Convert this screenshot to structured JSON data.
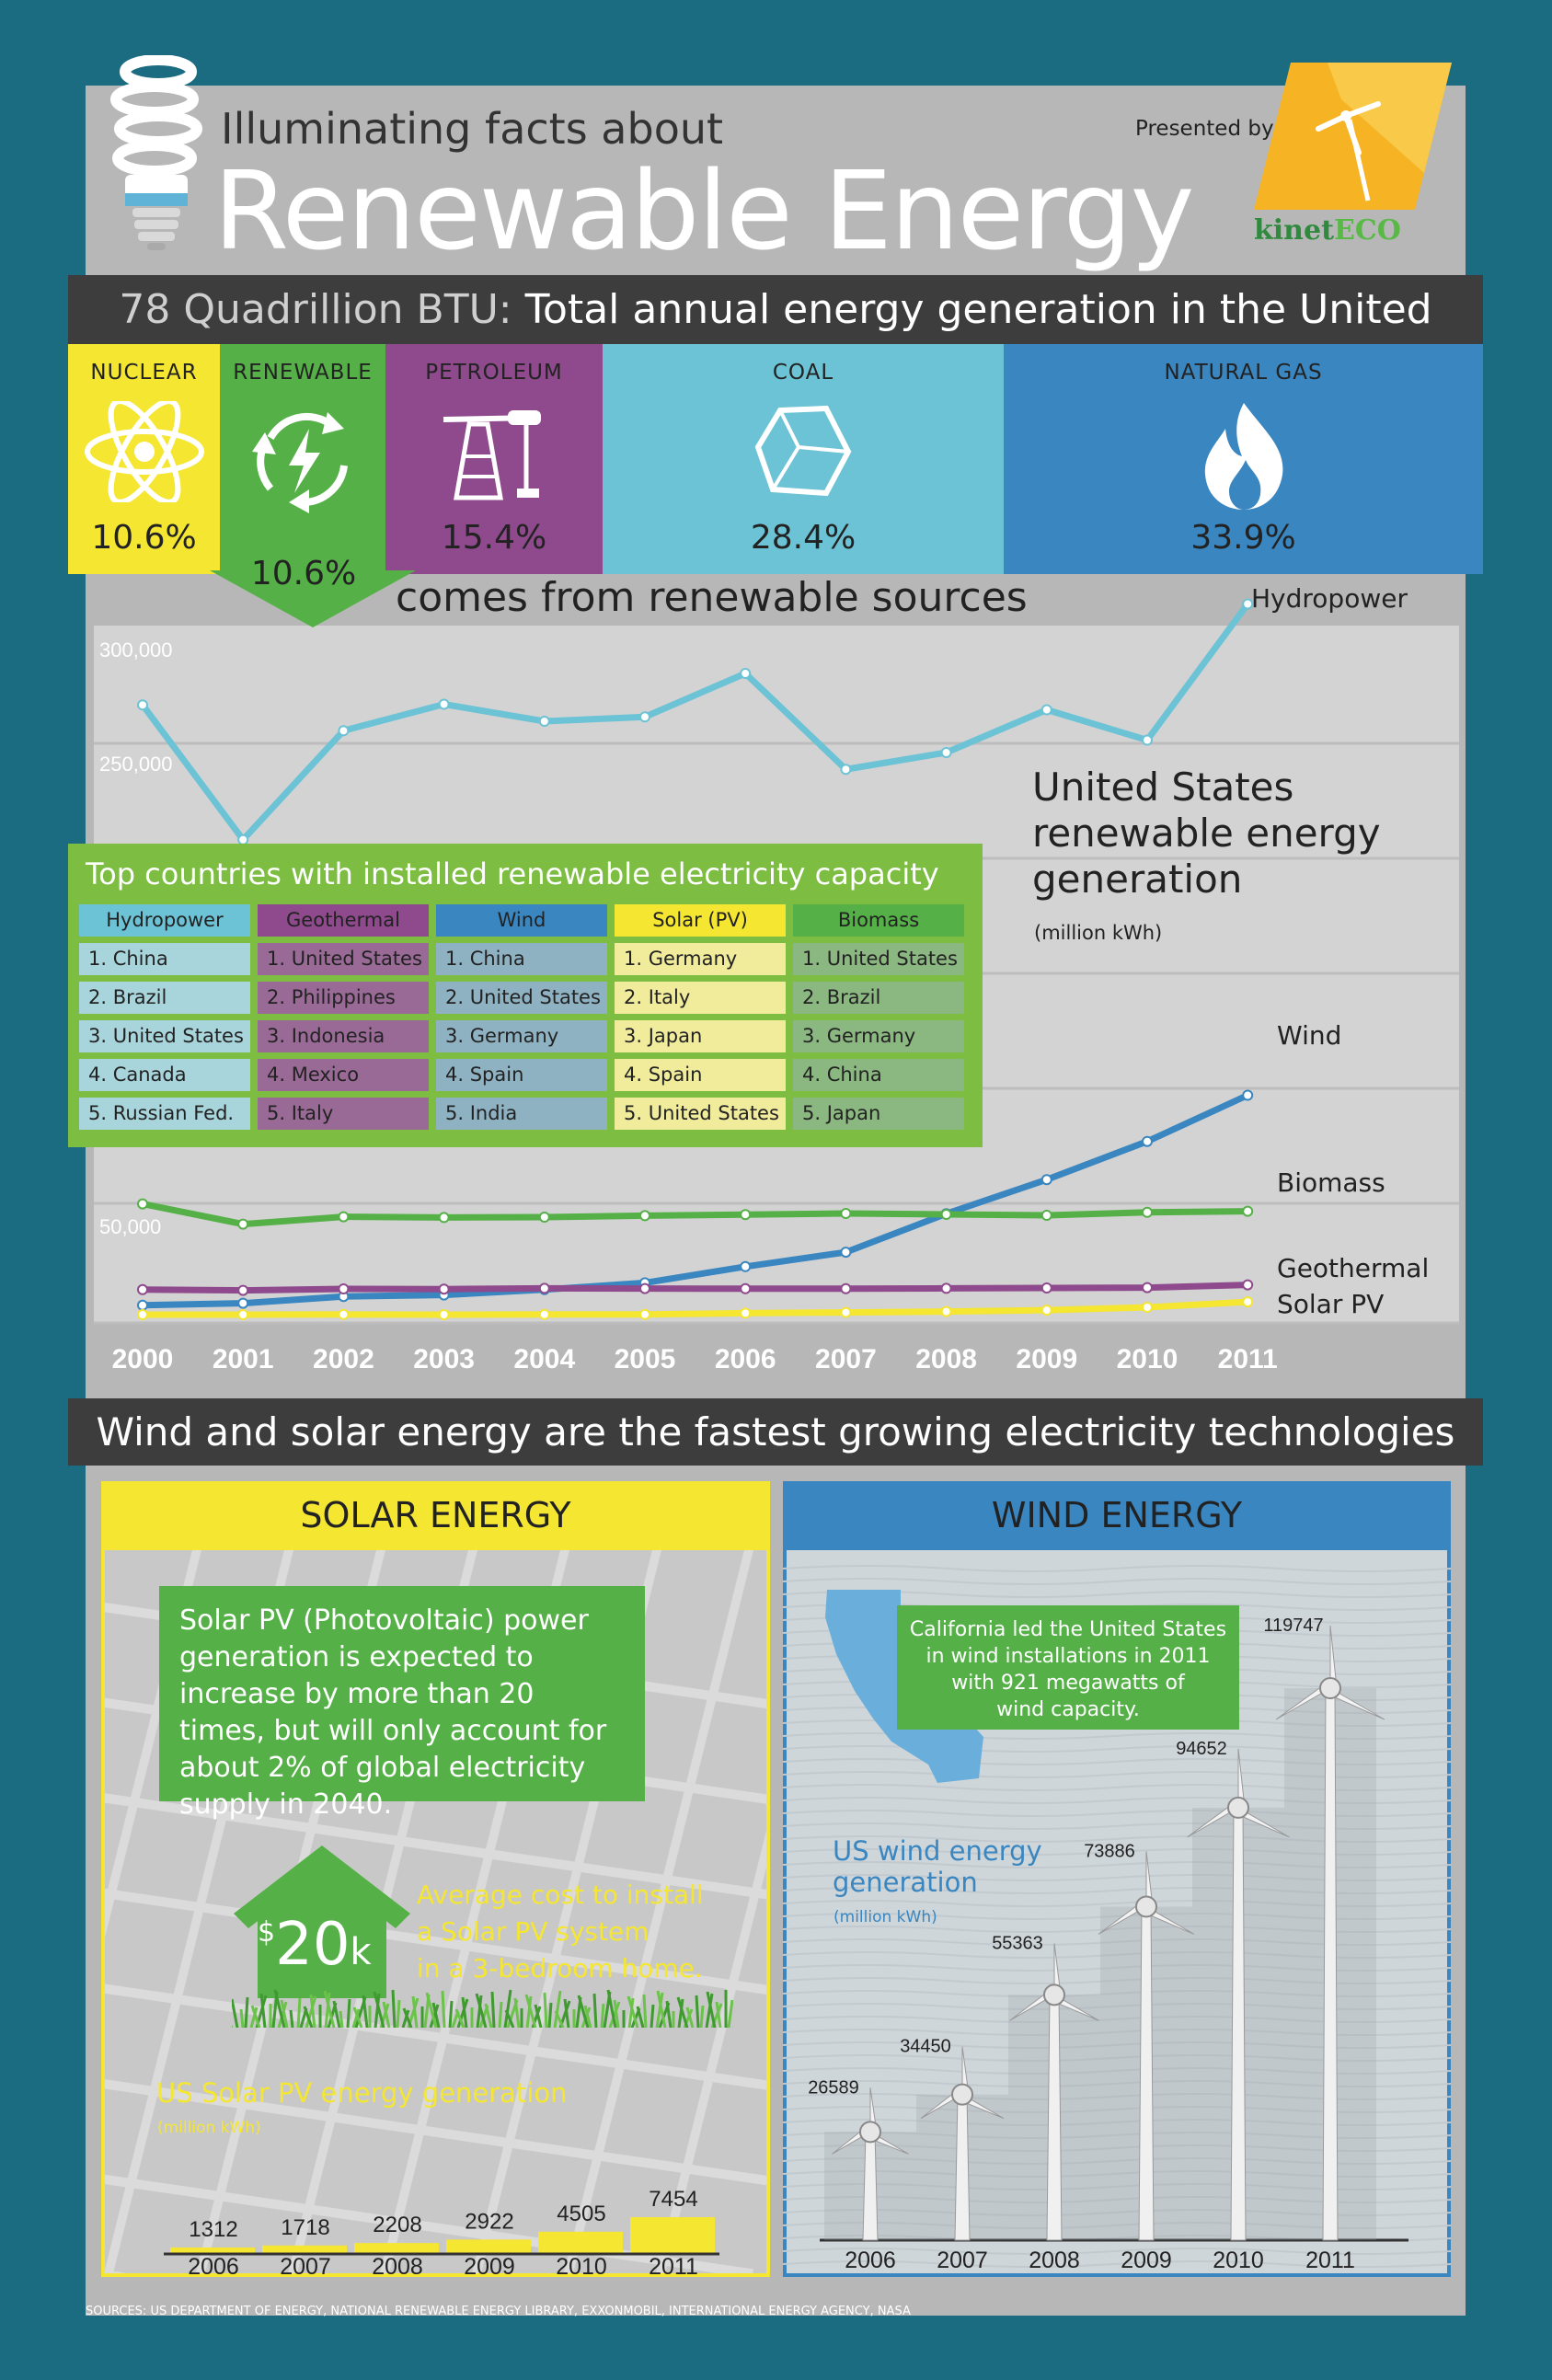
{
  "header": {
    "subtitle": "Illuminating facts about",
    "title": "Renewable Energy",
    "presented_by": "Presented by",
    "logo_part1": "kinet",
    "logo_part2": "ECO"
  },
  "total_bar": {
    "highlight": "78 Quadrillion BTU:",
    "text": " Total annual energy generation in the United States"
  },
  "energy_mix": [
    {
      "label": "NUCLEAR",
      "pct": "10.6%",
      "color": "#f5e632",
      "icon": "atom-icon"
    },
    {
      "label": "RENEWABLE",
      "pct": "10.6%",
      "color": "#55b147",
      "icon": "renewable-cycle-icon"
    },
    {
      "label": "PETROLEUM",
      "pct": "15.4%",
      "color": "#8e4a8c",
      "icon": "oil-pump-icon"
    },
    {
      "label": "COAL",
      "pct": "28.4%",
      "color": "#6cc3d5",
      "icon": "coal-lump-icon"
    },
    {
      "label": "NATURAL GAS",
      "pct": "33.9%",
      "color": "#3a86c0",
      "icon": "flame-icon"
    }
  ],
  "renewable_text": "comes from renewable sources",
  "chart_data": {
    "type": "line",
    "title": "United States renewable energy generation",
    "unit": "(million kWh)",
    "x": [
      2000,
      2001,
      2002,
      2003,
      2004,
      2005,
      2006,
      2007,
      2008,
      2009,
      2010,
      2011
    ],
    "y_tick_labels": [
      "300,000",
      "250,000",
      "50,000"
    ],
    "series": [
      {
        "name": "Hydropower",
        "color": "#6cc3d5",
        "values": [
          275500,
          216900,
          264300,
          275800,
          268400,
          270300,
          289200,
          247500,
          254800,
          273400,
          260200,
          319400
        ]
      },
      {
        "name": "Wind",
        "color": "#3a86c0",
        "values": [
          5600,
          6700,
          10400,
          11200,
          14100,
          17800,
          26600,
          34450,
          55363,
          73886,
          94652,
          119747
        ]
      },
      {
        "name": "Biomass",
        "color": "#55b147",
        "values": [
          60700,
          49700,
          53700,
          53300,
          53500,
          54300,
          54900,
          55500,
          55000,
          54500,
          56100,
          56700
        ]
      },
      {
        "name": "Geothermal",
        "color": "#8e4a8c",
        "values": [
          14100,
          13700,
          14500,
          14400,
          14800,
          14700,
          14600,
          14600,
          14800,
          15000,
          15200,
          16700
        ]
      },
      {
        "name": "Solar PV",
        "color": "#f5e632",
        "values": [
          500,
          500,
          600,
          500,
          600,
          600,
          1312,
          1718,
          2208,
          2922,
          4505,
          7454
        ]
      }
    ]
  },
  "top_countries": {
    "title": "Top countries with installed renewable electricity capacity",
    "columns": [
      {
        "name": "Hydropower",
        "head_color": "#6cc3d5",
        "cell_color": "#a8d5dc",
        "items": [
          "1. China",
          "2. Brazil",
          "3. United States",
          "4. Canada",
          "5. Russian Fed."
        ]
      },
      {
        "name": "Geothermal",
        "head_color": "#8e4a8c",
        "cell_color": "#9a6a97",
        "items": [
          "1. United States",
          "2. Philippines",
          "3. Indonesia",
          "4. Mexico",
          "5. Italy"
        ]
      },
      {
        "name": "Wind",
        "head_color": "#3a86c0",
        "cell_color": "#8fb2c3",
        "items": [
          "1. China",
          "2. United States",
          "3. Germany",
          "4. Spain",
          "5. India"
        ]
      },
      {
        "name": "Solar (PV)",
        "head_color": "#f5e632",
        "cell_color": "#f1ec9c",
        "items": [
          "1. Germany",
          "2. Italy",
          "3. Japan",
          "4. Spain",
          "5. United States"
        ]
      },
      {
        "name": "Biomass",
        "head_color": "#55b147",
        "cell_color": "#8bb780",
        "items": [
          "1. United States",
          "2. Brazil",
          "3. Germany",
          "4. China",
          "5. Japan"
        ]
      }
    ]
  },
  "growth_bar": "Wind and solar energy are the fastest growing electricity technologies",
  "solar": {
    "heading": "SOLAR ENERGY",
    "fact": "Solar PV (Photovoltaic) power generation is expected to increase by more than 20 times, but will only account for about 2% of global electricity supply in 2040.",
    "price_symbol": "$",
    "price_value": "20",
    "price_suffix": "k",
    "avg_cost_line1": "Average cost to install",
    "avg_cost_line2": "a Solar PV system",
    "avg_cost_line3": "in a 3-bedroom home.",
    "pv_title": "US Solar PV energy generation",
    "pv_unit": "(million kWh)"
  },
  "solar_pv_chart": {
    "type": "bar",
    "categories": [
      "2006",
      "2007",
      "2008",
      "2009",
      "2010",
      "2011"
    ],
    "values": [
      1312,
      1718,
      2208,
      2922,
      4505,
      7454
    ]
  },
  "wind": {
    "heading": "WIND ENERGY",
    "california_line1": "California led the United States",
    "california_line2": "in wind installations in 2011",
    "california_line3": "with 921 megawatts of",
    "california_line4": "wind capacity.",
    "title_line1": "US wind energy",
    "title_line2": "generation",
    "unit": "(million kWh)"
  },
  "wind_chart": {
    "type": "bar",
    "categories": [
      "2006",
      "2007",
      "2008",
      "2009",
      "2010",
      "2011"
    ],
    "values": [
      26589,
      34450,
      55363,
      73886,
      94652,
      119747
    ]
  },
  "sources": "SOURCES: US DEPARTMENT OF ENERGY, NATIONAL RENEWABLE ENERGY LIBRARY, EXXONMOBIL, INTERNATIONAL ENERGY AGENCY, NASA"
}
